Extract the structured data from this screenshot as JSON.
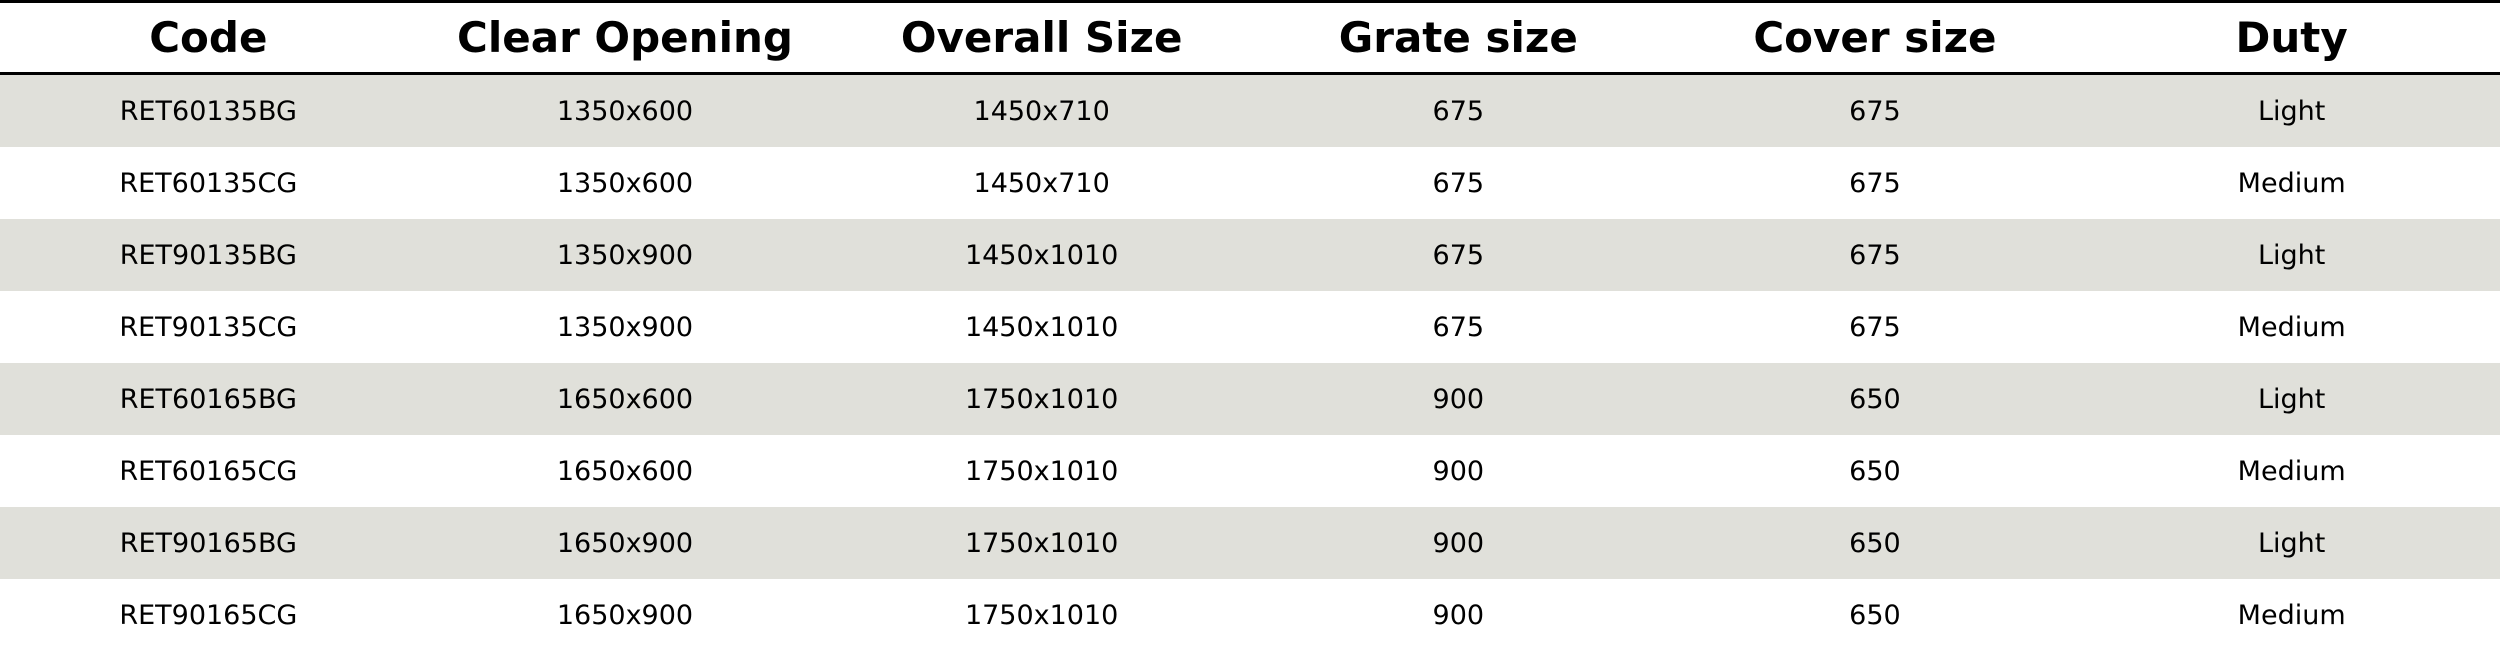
{
  "table": {
    "header": [
      "Code",
      "Clear Opening",
      "Overall Size",
      "Grate size",
      "Cover size",
      "Duty"
    ],
    "rows": [
      [
        "RET60135BG",
        "1350x600",
        "1450x710",
        "675",
        "675",
        "Light"
      ],
      [
        "RET60135CG",
        "1350x600",
        "1450x710",
        "675",
        "675",
        "Medium"
      ],
      [
        "RET90135BG",
        "1350x900",
        "1450x1010",
        "675",
        "675",
        "Light"
      ],
      [
        "RET90135CG",
        "1350x900",
        "1450x1010",
        "675",
        "675",
        "Medium"
      ],
      [
        "RET60165BG",
        "1650x600",
        "1750x1010",
        "900",
        "650",
        "Light"
      ],
      [
        "RET60165CG",
        "1650x600",
        "1750x1010",
        "900",
        "650",
        "Medium"
      ],
      [
        "RET90165BG",
        "1650x900",
        "1750x1010",
        "900",
        "650",
        "Light"
      ],
      [
        "RET90165CG",
        "1650x900",
        "1750x1010",
        "900",
        "650",
        "Medium"
      ]
    ]
  }
}
